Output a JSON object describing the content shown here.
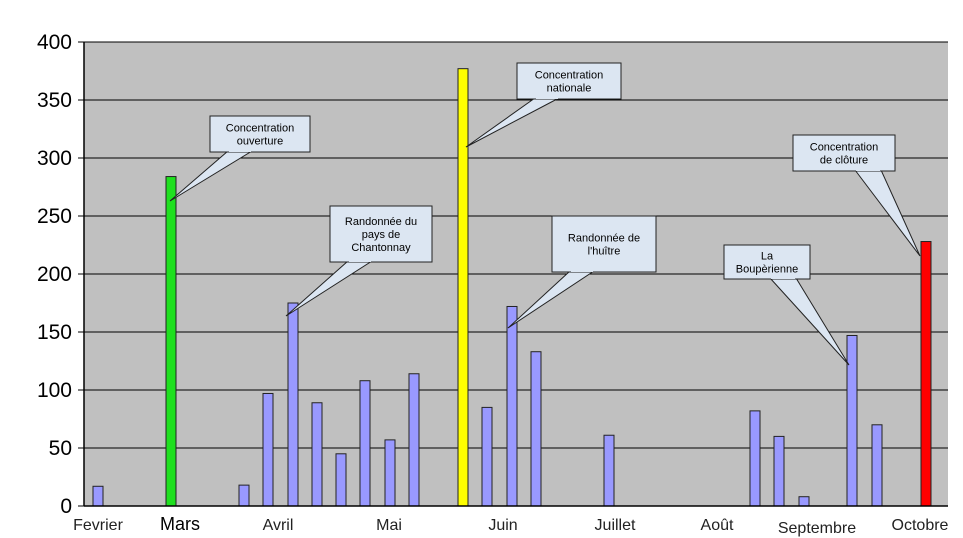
{
  "chart_data": {
    "type": "bar",
    "title": "",
    "xlabel": "",
    "ylabel": "",
    "ylim": [
      0,
      400
    ],
    "yticks": [
      0,
      50,
      100,
      150,
      200,
      250,
      300,
      350,
      400
    ],
    "grid": true,
    "colors": {
      "default": "#9999ff",
      "green": "#1fe01f",
      "yellow": "#ffff00",
      "red": "#ff0000",
      "plot_bg": "#c0c0c0"
    },
    "month_labels": [
      "Fevrier",
      "Mars",
      "Avril",
      "Mai",
      "Juin",
      "Juillet",
      "Août",
      "Septembre",
      "Octobre"
    ],
    "bars": [
      {
        "value": 17,
        "color": "default"
      },
      {
        "value": 284,
        "color": "green",
        "annotation": "Concentration ouverture"
      },
      {
        "value": 18,
        "color": "default"
      },
      {
        "value": 97,
        "color": "default"
      },
      {
        "value": 175,
        "color": "default",
        "annotation": "Randonnée du pays de Chantonnay"
      },
      {
        "value": 89,
        "color": "default"
      },
      {
        "value": 45,
        "color": "default"
      },
      {
        "value": 108,
        "color": "default"
      },
      {
        "value": 57,
        "color": "default"
      },
      {
        "value": 114,
        "color": "default"
      },
      {
        "value": 377,
        "color": "yellow",
        "annotation": "Concentration nationale"
      },
      {
        "value": 85,
        "color": "default"
      },
      {
        "value": 172,
        "color": "default",
        "annotation": "Randonnée de l'huître"
      },
      {
        "value": 133,
        "color": "default"
      },
      {
        "value": 61,
        "color": "default"
      },
      {
        "value": 82,
        "color": "default"
      },
      {
        "value": 60,
        "color": "default"
      },
      {
        "value": 8,
        "color": "default"
      },
      {
        "value": 147,
        "color": "default",
        "annotation": "La Boupèrienne"
      },
      {
        "value": 70,
        "color": "default"
      },
      {
        "value": 228,
        "color": "red",
        "annotation": "Concentration de clôture"
      }
    ],
    "annotations": [
      {
        "bar": 1,
        "lines": [
          "Concentration",
          "ouverture"
        ]
      },
      {
        "bar": 4,
        "lines": [
          "Randonnée du",
          "pays de",
          "Chantonnay"
        ]
      },
      {
        "bar": 10,
        "lines": [
          "Concentration",
          "nationale"
        ]
      },
      {
        "bar": 12,
        "lines": [
          "Randonnée de",
          "l'huître"
        ]
      },
      {
        "bar": 18,
        "lines": [
          "La",
          "Boupèrienne"
        ]
      },
      {
        "bar": 20,
        "lines": [
          "Concentration",
          "de clôture"
        ]
      }
    ]
  }
}
